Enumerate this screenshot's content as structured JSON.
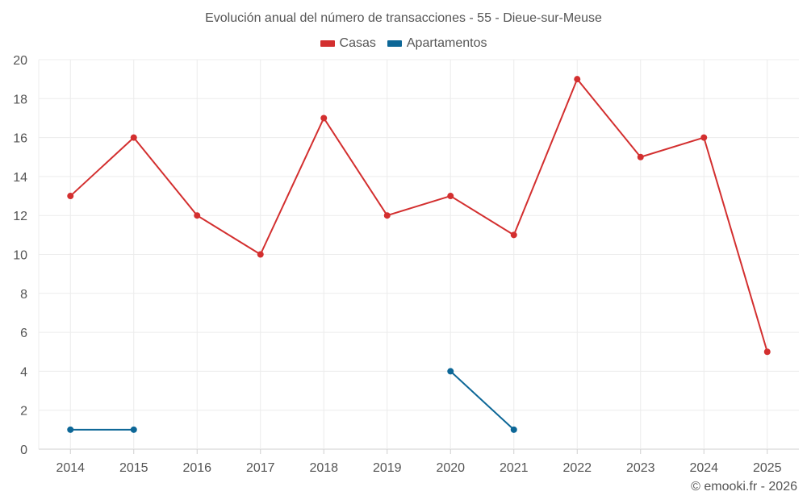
{
  "chart_data": {
    "type": "line",
    "title": "Evolución anual del número de transacciones - 55 - Dieue-sur-Meuse",
    "categories": [
      "2014",
      "2015",
      "2016",
      "2017",
      "2018",
      "2019",
      "2020",
      "2021",
      "2022",
      "2023",
      "2024",
      "2025"
    ],
    "yticks": [
      "0",
      "2",
      "4",
      "6",
      "8",
      "10",
      "12",
      "14",
      "16",
      "18",
      "20"
    ],
    "ylim": [
      0,
      20
    ],
    "xlabel": "",
    "ylabel": "",
    "grid": true,
    "legend_position": "top-center",
    "series": [
      {
        "name": "Casas",
        "color": "#d32f2f",
        "values": [
          13,
          16,
          12,
          10,
          17,
          12,
          13,
          11,
          19,
          15,
          16,
          5
        ]
      },
      {
        "name": "Apartamentos",
        "color": "#0d6797",
        "values": [
          1,
          1,
          null,
          null,
          null,
          null,
          4,
          1,
          null,
          null,
          null,
          null
        ]
      }
    ]
  },
  "credit": "© emooki.fr - 2026"
}
